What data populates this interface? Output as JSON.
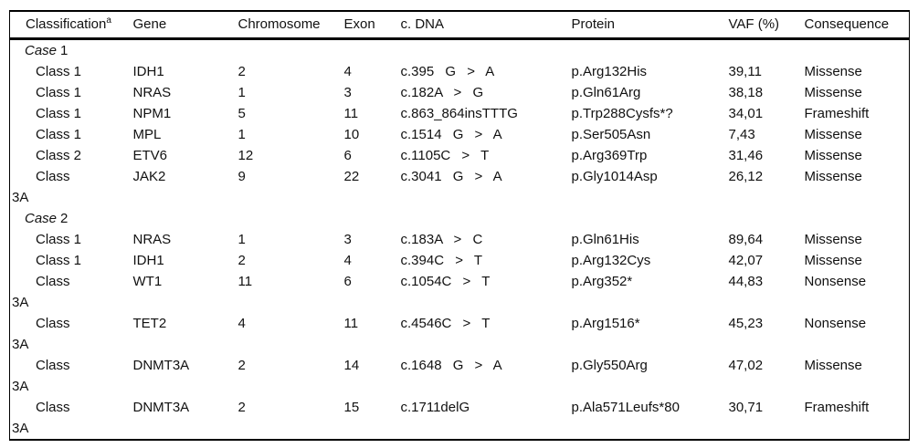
{
  "page": {
    "background": "#ffffff",
    "text_color": "#111111",
    "rule_color": "#000000"
  },
  "table": {
    "headers": {
      "classification": "Classification",
      "classification_superscript": "a",
      "gene": "Gene",
      "chromosome": "Chromosome",
      "exon": "Exon",
      "cdna": "c. DNA",
      "protein": "Protein",
      "vaf": "VAF (%)",
      "consequence": "Consequence"
    },
    "sections": [
      {
        "case_label": "Case",
        "case_number": "1",
        "rows": [
          {
            "classification": "Class 1",
            "gene": "IDH1",
            "chromosome": "2",
            "exon": "4",
            "cdna": "c.395 G > A",
            "protein": "p.Arg132His",
            "vaf": "39,11",
            "consequence": "Missense"
          },
          {
            "classification": "Class 1",
            "gene": "NRAS",
            "chromosome": "1",
            "exon": "3",
            "cdna": "c.182A > G",
            "protein": "p.Gln61Arg",
            "vaf": "38,18",
            "consequence": "Missense"
          },
          {
            "classification": "Class 1",
            "gene": "NPM1",
            "chromosome": "5",
            "exon": "11",
            "cdna": "c.863_864insTTTG",
            "protein": "p.Trp288Cysfs*?",
            "vaf": "34,01",
            "consequence": "Frameshift"
          },
          {
            "classification": "Class 1",
            "gene": "MPL",
            "chromosome": "1",
            "exon": "10",
            "cdna": "c.1514 G > A",
            "protein": "p.Ser505Asn",
            "vaf": "7,43",
            "consequence": "Missense"
          },
          {
            "classification": "Class 2",
            "gene": "ETV6",
            "chromosome": "12",
            "exon": "6",
            "cdna": "c.1105C > T",
            "protein": "p.Arg369Trp",
            "vaf": "31,46",
            "consequence": "Missense"
          },
          {
            "classification": "Class 3A",
            "gene": "JAK2",
            "chromosome": "9",
            "exon": "22",
            "cdna": "c.3041 G > A",
            "protein": "p.Gly1014Asp",
            "vaf": "26,12",
            "consequence": "Missense"
          }
        ]
      },
      {
        "case_label": "Case",
        "case_number": "2",
        "rows": [
          {
            "classification": "Class 1",
            "gene": "NRAS",
            "chromosome": "1",
            "exon": "3",
            "cdna": "c.183A > C",
            "protein": "p.Gln61His",
            "vaf": "89,64",
            "consequence": "Missense"
          },
          {
            "classification": "Class 1",
            "gene": "IDH1",
            "chromosome": "2",
            "exon": "4",
            "cdna": "c.394C > T",
            "protein": "p.Arg132Cys",
            "vaf": "42,07",
            "consequence": "Missense"
          },
          {
            "classification": "Class 3A",
            "gene": "WT1",
            "chromosome": "11",
            "exon": "6",
            "cdna": "c.1054C > T",
            "protein": "p.Arg352*",
            "vaf": "44,83",
            "consequence": "Nonsense"
          },
          {
            "classification": "Class 3A",
            "gene": "TET2",
            "chromosome": "4",
            "exon": "11",
            "cdna": "c.4546C > T",
            "protein": "p.Arg1516*",
            "vaf": "45,23",
            "consequence": "Nonsense"
          },
          {
            "classification": "Class 3A",
            "gene": "DNMT3A",
            "chromosome": "2",
            "exon": "14",
            "cdna": "c.1648 G > A",
            "protein": "p.Gly550Arg",
            "vaf": "47,02",
            "consequence": "Missense"
          },
          {
            "classification": "Class 3A",
            "gene": "DNMT3A",
            "chromosome": "2",
            "exon": "15",
            "cdna": "c.1711delG",
            "protein": "p.Ala571Leufs*80",
            "vaf": "30,71",
            "consequence": "Frameshift"
          }
        ]
      }
    ]
  }
}
